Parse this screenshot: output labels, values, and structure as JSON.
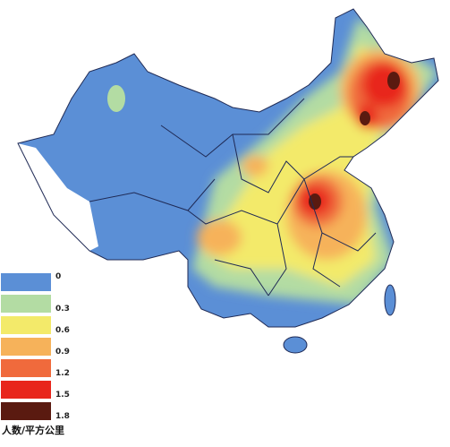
{
  "legend": {
    "title": "人数/平方公里",
    "items": [
      {
        "label": "0",
        "color": "#5b8fd6"
      },
      {
        "label": "0.3",
        "color": "#b3dca3"
      },
      {
        "label": "0.6",
        "color": "#f3ea6a"
      },
      {
        "label": "0.9",
        "color": "#f6b25a"
      },
      {
        "label": "1.2",
        "color": "#f06a3c"
      },
      {
        "label": "1.5",
        "color": "#e8261c"
      },
      {
        "label": "1.8",
        "color": "#5a1a10"
      }
    ]
  }
}
